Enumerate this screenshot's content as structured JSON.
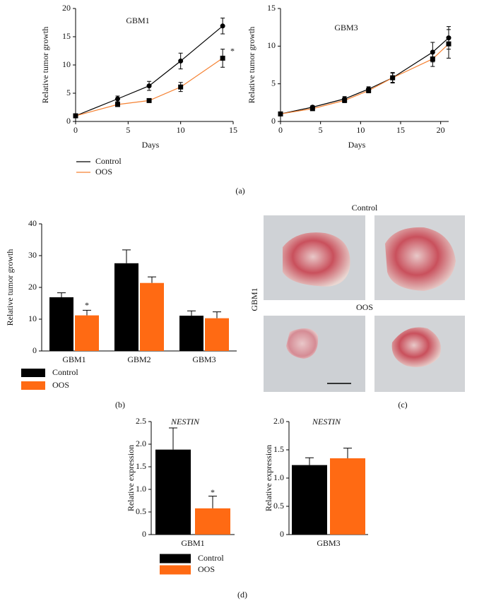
{
  "chart_data": [
    {
      "type": "line",
      "title": "GBM1",
      "x": [
        0,
        4,
        7,
        10,
        14
      ],
      "series": [
        {
          "name": "Control",
          "color": "#000000",
          "values": [
            1,
            4,
            6.3,
            10.7,
            16.9
          ],
          "errors": [
            0,
            0.5,
            0.8,
            1.4,
            1.4
          ]
        },
        {
          "name": "OOS",
          "color": "#f58233",
          "values": [
            1,
            3,
            3.7,
            6.1,
            11.2
          ],
          "errors": [
            0,
            0.3,
            0.3,
            0.8,
            1.6
          ]
        }
      ],
      "xlim": [
        0,
        15
      ],
      "xticks": [
        0,
        5,
        10,
        15
      ],
      "ylim": [
        0,
        20
      ],
      "yticks": [
        0,
        5,
        10,
        15,
        20
      ],
      "x_label": "Days",
      "y_label": "Relative tumor growth",
      "annotation": "*",
      "panel_label": "(a)"
    },
    {
      "type": "line",
      "title": "GBM3",
      "x": [
        0,
        4,
        8,
        11,
        14,
        19,
        21
      ],
      "series": [
        {
          "color": "#000000",
          "values": [
            1,
            1.9,
            3,
            4.3,
            5.8,
            9.2,
            11.1
          ],
          "errors": [
            0,
            0.2,
            0.3,
            0.3,
            0.6,
            1.3,
            1.5
          ]
        },
        {
          "color": "#f58233",
          "values": [
            1,
            1.7,
            2.8,
            4.1,
            5.8,
            8.3,
            10.3
          ],
          "errors": [
            0,
            0.2,
            0.3,
            0.3,
            0.7,
            1,
            1.9
          ]
        }
      ],
      "xlim": [
        0,
        21
      ],
      "xticks": [
        0,
        5,
        10,
        15,
        20
      ],
      "ylim": [
        0,
        15
      ],
      "yticks": [
        0,
        5,
        10,
        15
      ],
      "x_label": "Days",
      "y_label": "Relative tumor growth"
    },
    {
      "type": "bar",
      "categories": [
        "GBM1",
        "GBM2",
        "GBM3"
      ],
      "series": [
        {
          "name": "Control",
          "color": "#000000",
          "values": [
            16.9,
            27.6,
            11.1
          ],
          "errors": [
            1.4,
            4.2,
            1.5
          ]
        },
        {
          "name": "OOS",
          "color": "#ff6a13",
          "values": [
            11.2,
            21.4,
            10.3
          ],
          "errors": [
            1.6,
            1.9,
            2.0
          ]
        }
      ],
      "ylim": [
        0,
        40
      ],
      "yticks": [
        0,
        10,
        20,
        30,
        40
      ],
      "y_label": "Relative tumor growth",
      "annotation": "*",
      "panel_label": "(b)"
    },
    {
      "type": "bar",
      "title": "NESTIN",
      "categories": [
        "GBM1"
      ],
      "series": [
        {
          "name": "Control",
          "color": "#000000",
          "values": [
            1.88
          ],
          "errors": [
            0.48
          ]
        },
        {
          "name": "OOS",
          "color": "#ff6a13",
          "values": [
            0.58
          ],
          "errors": [
            0.27
          ]
        }
      ],
      "ylim": [
        0,
        2.5
      ],
      "yticks": [
        0,
        0.5,
        {
          "value": 1,
          "label": "1.0"
        },
        1.5,
        {
          "value": 2,
          "label": "2.0"
        },
        2.5
      ],
      "y_label": "Relative expression",
      "annotation": "*",
      "panel_label": "(d)"
    },
    {
      "type": "bar",
      "title": "NESTIN",
      "categories": [
        "GBM3"
      ],
      "series": [
        {
          "color": "#000000",
          "values": [
            1.23
          ],
          "errors": [
            0.13
          ]
        },
        {
          "color": "#ff6a13",
          "values": [
            1.35
          ],
          "errors": [
            0.18
          ]
        }
      ],
      "ylim": [
        0,
        2
      ],
      "yticks": [
        0,
        0.5,
        {
          "value": 1,
          "label": "1.0"
        },
        1.5,
        {
          "value": 2,
          "label": "2.0"
        }
      ],
      "y_label": "Relative expression"
    }
  ],
  "panel_c": {
    "header_top": "Control",
    "header_bottom": "OOS",
    "row_label": "GBM1",
    "panel_label": "(c)"
  }
}
